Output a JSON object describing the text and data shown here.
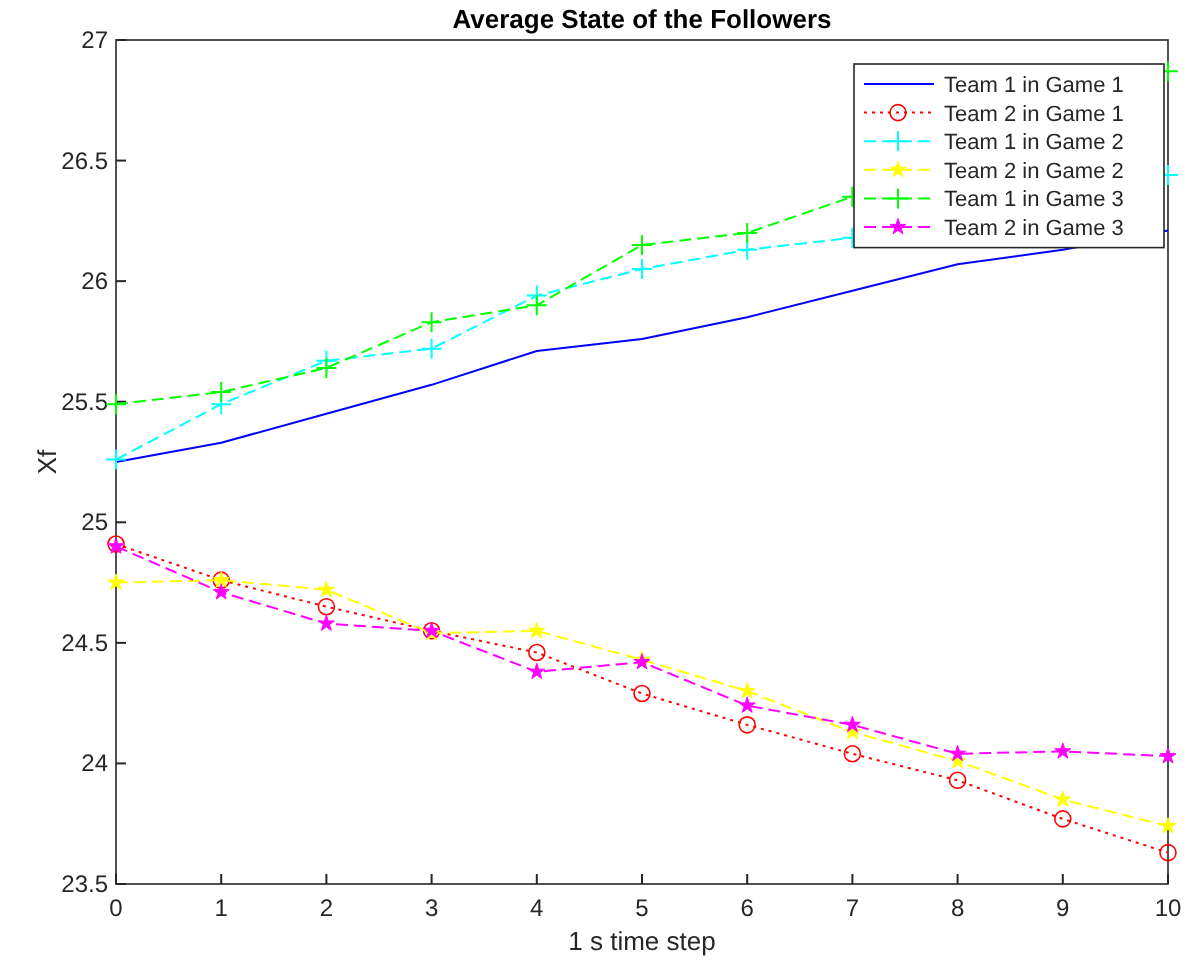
{
  "chart_data": {
    "type": "line",
    "title": "Average State of the Followers",
    "xlabel": "1 s time step",
    "ylabel": "Xf",
    "x": [
      0,
      1,
      2,
      3,
      4,
      5,
      6,
      7,
      8,
      9,
      10
    ],
    "xlim": [
      0,
      10
    ],
    "xticks": [
      0,
      1,
      2,
      3,
      4,
      5,
      6,
      7,
      8,
      9,
      10
    ],
    "ylim": [
      23.5,
      27
    ],
    "yticks": [
      23.5,
      24,
      24.5,
      25,
      25.5,
      26,
      26.5,
      27
    ],
    "grid": false,
    "legend": "top right",
    "series": [
      {
        "name": "Team 1 in Game 1",
        "color": "#0000ff",
        "marker": "none",
        "line_style": "solid",
        "values": [
          25.25,
          25.33,
          25.45,
          25.57,
          25.71,
          25.76,
          25.85,
          25.96,
          26.07,
          26.13,
          26.21
        ]
      },
      {
        "name": "Team 2 in Game 1",
        "color": "#ff0000",
        "marker": "circle",
        "line_style": "dotted",
        "values": [
          24.91,
          24.76,
          24.65,
          24.55,
          24.46,
          24.29,
          24.16,
          24.04,
          23.93,
          23.77,
          23.63
        ]
      },
      {
        "name": "Team 1 in Game 2",
        "color": "#00ffff",
        "marker": "cross",
        "line_style": "dashed",
        "values": [
          25.26,
          25.49,
          25.67,
          25.72,
          25.94,
          26.05,
          26.13,
          26.18,
          null,
          null,
          26.44
        ]
      },
      {
        "name": "Team 2 in Game 2",
        "color": "#ffff00",
        "marker": "star",
        "line_style": "dashed",
        "values": [
          24.75,
          24.76,
          24.72,
          24.54,
          24.55,
          24.43,
          24.3,
          24.13,
          24.01,
          23.85,
          23.74
        ]
      },
      {
        "name": "Team 1 in Game 3",
        "color": "#00ff00",
        "marker": "cross",
        "line_style": "dashed",
        "values": [
          25.49,
          25.54,
          25.64,
          25.83,
          25.9,
          26.15,
          26.2,
          26.35,
          null,
          null,
          26.87
        ]
      },
      {
        "name": "Team 2 in Game 3",
        "color": "#ff00ff",
        "marker": "star",
        "line_style": "dashed",
        "values": [
          24.9,
          24.71,
          24.58,
          24.55,
          24.38,
          24.42,
          24.24,
          24.16,
          24.04,
          24.05,
          24.03
        ]
      }
    ]
  }
}
